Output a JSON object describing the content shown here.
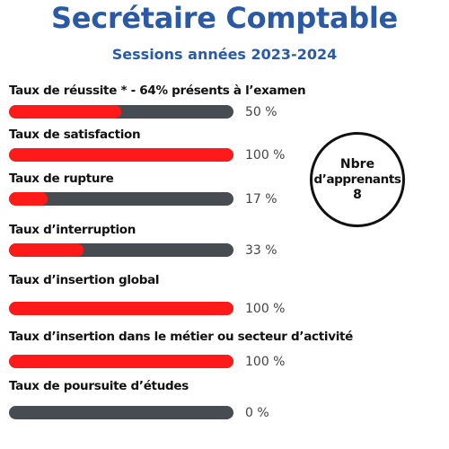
{
  "header": {
    "title": "Secrétaire Comptable",
    "subtitle": "Sessions années 2023-2024"
  },
  "indicators": [
    {
      "label": "Taux de réussite * - 64% présents à l’examen",
      "value_text": "50 %",
      "percent": 50
    },
    {
      "label": "Taux de satisfaction",
      "value_text": "100 %",
      "percent": 100
    },
    {
      "label": "Taux de rupture",
      "value_text": "17 %",
      "percent": 17
    },
    {
      "label": "Taux d’interruption",
      "value_text": "33 %",
      "percent": 33
    },
    {
      "label": "Taux d’insertion global",
      "value_text": "100 %",
      "percent": 100
    },
    {
      "label": "Taux d’insertion dans le métier ou secteur d’activité",
      "value_text": "100 %",
      "percent": 100
    },
    {
      "label": "Taux de poursuite d’études",
      "value_text": "0 %",
      "percent": 0
    }
  ],
  "learners": {
    "line1": "Nbre",
    "line2": "d’apprenants",
    "count": "8"
  },
  "colors": {
    "title": "#2a5aa6",
    "bar_fill": "#ff1a1a",
    "bar_track": "#474c53"
  }
}
